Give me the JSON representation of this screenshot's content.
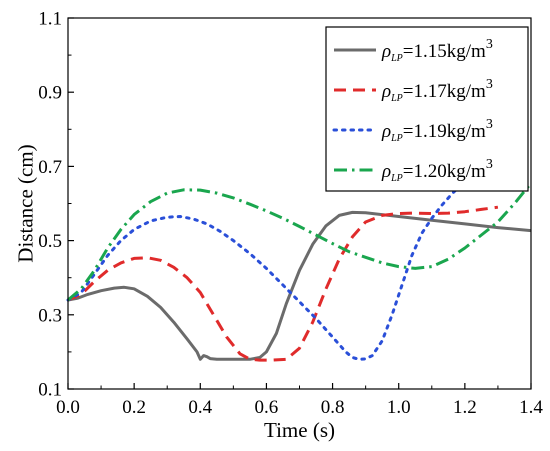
{
  "chart_data": {
    "type": "line",
    "xlabel": "Time (s)",
    "ylabel": "Distance (cm)",
    "xlim": [
      0.0,
      1.4
    ],
    "ylim": [
      0.1,
      1.1
    ],
    "x_ticks": [
      "0.0",
      "0.2",
      "0.4",
      "0.6",
      "0.8",
      "1.0",
      "1.2",
      "1.4"
    ],
    "y_ticks": [
      "0.1",
      "0.3",
      "0.5",
      "0.7",
      "0.9",
      "1.1"
    ],
    "grid": false,
    "legend_position": "top-right",
    "legend_symbol": "ρ",
    "legend_subscript": "LP",
    "legend_unit": "kg/m",
    "legend_unit_power": "3",
    "series": [
      {
        "name": "ρLP=1.15kg/m3",
        "value_label": "=1.15",
        "color": "#6b6b6b",
        "style": "solid",
        "x": [
          0.0,
          0.03,
          0.06,
          0.1,
          0.14,
          0.17,
          0.2,
          0.24,
          0.28,
          0.32,
          0.36,
          0.39,
          0.4,
          0.41,
          0.42,
          0.43,
          0.45,
          0.5,
          0.55,
          0.58,
          0.6,
          0.63,
          0.66,
          0.7,
          0.74,
          0.78,
          0.82,
          0.86,
          0.9,
          1.0,
          1.1,
          1.2,
          1.3,
          1.4
        ],
        "y": [
          0.34,
          0.345,
          0.355,
          0.365,
          0.372,
          0.374,
          0.37,
          0.35,
          0.32,
          0.28,
          0.235,
          0.2,
          0.18,
          0.19,
          0.187,
          0.182,
          0.18,
          0.18,
          0.18,
          0.185,
          0.2,
          0.25,
          0.33,
          0.42,
          0.49,
          0.54,
          0.568,
          0.576,
          0.575,
          0.565,
          0.555,
          0.545,
          0.535,
          0.527
        ]
      },
      {
        "name": "ρLP=1.17kg/m3",
        "value_label": "=1.17",
        "color": "#e02b2b",
        "style": "dashed",
        "x": [
          0.0,
          0.04,
          0.08,
          0.12,
          0.16,
          0.2,
          0.24,
          0.28,
          0.32,
          0.36,
          0.4,
          0.44,
          0.48,
          0.52,
          0.55,
          0.58,
          0.62,
          0.66,
          0.7,
          0.74,
          0.78,
          0.82,
          0.86,
          0.9,
          0.95,
          1.0,
          1.05,
          1.1,
          1.15,
          1.2,
          1.25,
          1.3
        ],
        "y": [
          0.34,
          0.355,
          0.39,
          0.42,
          0.44,
          0.452,
          0.454,
          0.447,
          0.428,
          0.4,
          0.36,
          0.3,
          0.24,
          0.195,
          0.18,
          0.178,
          0.178,
          0.18,
          0.21,
          0.28,
          0.37,
          0.45,
          0.51,
          0.55,
          0.568,
          0.573,
          0.574,
          0.573,
          0.574,
          0.578,
          0.584,
          0.59
        ]
      },
      {
        "name": "ρLP=1.19kg/m3",
        "value_label": "=1.19",
        "color": "#2a4fd8",
        "style": "dotted",
        "x": [
          0.0,
          0.04,
          0.08,
          0.12,
          0.16,
          0.2,
          0.25,
          0.3,
          0.34,
          0.38,
          0.42,
          0.46,
          0.5,
          0.55,
          0.6,
          0.65,
          0.7,
          0.75,
          0.8,
          0.84,
          0.86,
          0.88,
          0.9,
          0.92,
          0.95,
          0.98,
          1.01,
          1.04,
          1.07,
          1.1,
          1.13,
          1.16,
          1.2
        ],
        "y": [
          0.34,
          0.36,
          0.41,
          0.46,
          0.5,
          0.53,
          0.553,
          0.563,
          0.565,
          0.558,
          0.545,
          0.525,
          0.5,
          0.465,
          0.425,
          0.38,
          0.335,
          0.29,
          0.24,
          0.2,
          0.185,
          0.18,
          0.181,
          0.19,
          0.23,
          0.3,
          0.38,
          0.46,
          0.52,
          0.56,
          0.595,
          0.625,
          0.66
        ]
      },
      {
        "name": "ρLP=1.20kg/m3",
        "value_label": "=1.20",
        "color": "#1aa64e",
        "style": "dashdot",
        "x": [
          0.0,
          0.04,
          0.08,
          0.12,
          0.16,
          0.2,
          0.25,
          0.3,
          0.35,
          0.4,
          0.45,
          0.5,
          0.55,
          0.6,
          0.65,
          0.7,
          0.75,
          0.8,
          0.85,
          0.9,
          0.95,
          1.0,
          1.05,
          1.1,
          1.15,
          1.2,
          1.25,
          1.3,
          1.35,
          1.4
        ],
        "y": [
          0.34,
          0.37,
          0.42,
          0.48,
          0.53,
          0.57,
          0.605,
          0.628,
          0.637,
          0.636,
          0.628,
          0.615,
          0.598,
          0.58,
          0.56,
          0.538,
          0.515,
          0.492,
          0.47,
          0.455,
          0.44,
          0.43,
          0.425,
          0.43,
          0.45,
          0.48,
          0.515,
          0.55,
          0.6,
          0.655
        ]
      }
    ]
  }
}
